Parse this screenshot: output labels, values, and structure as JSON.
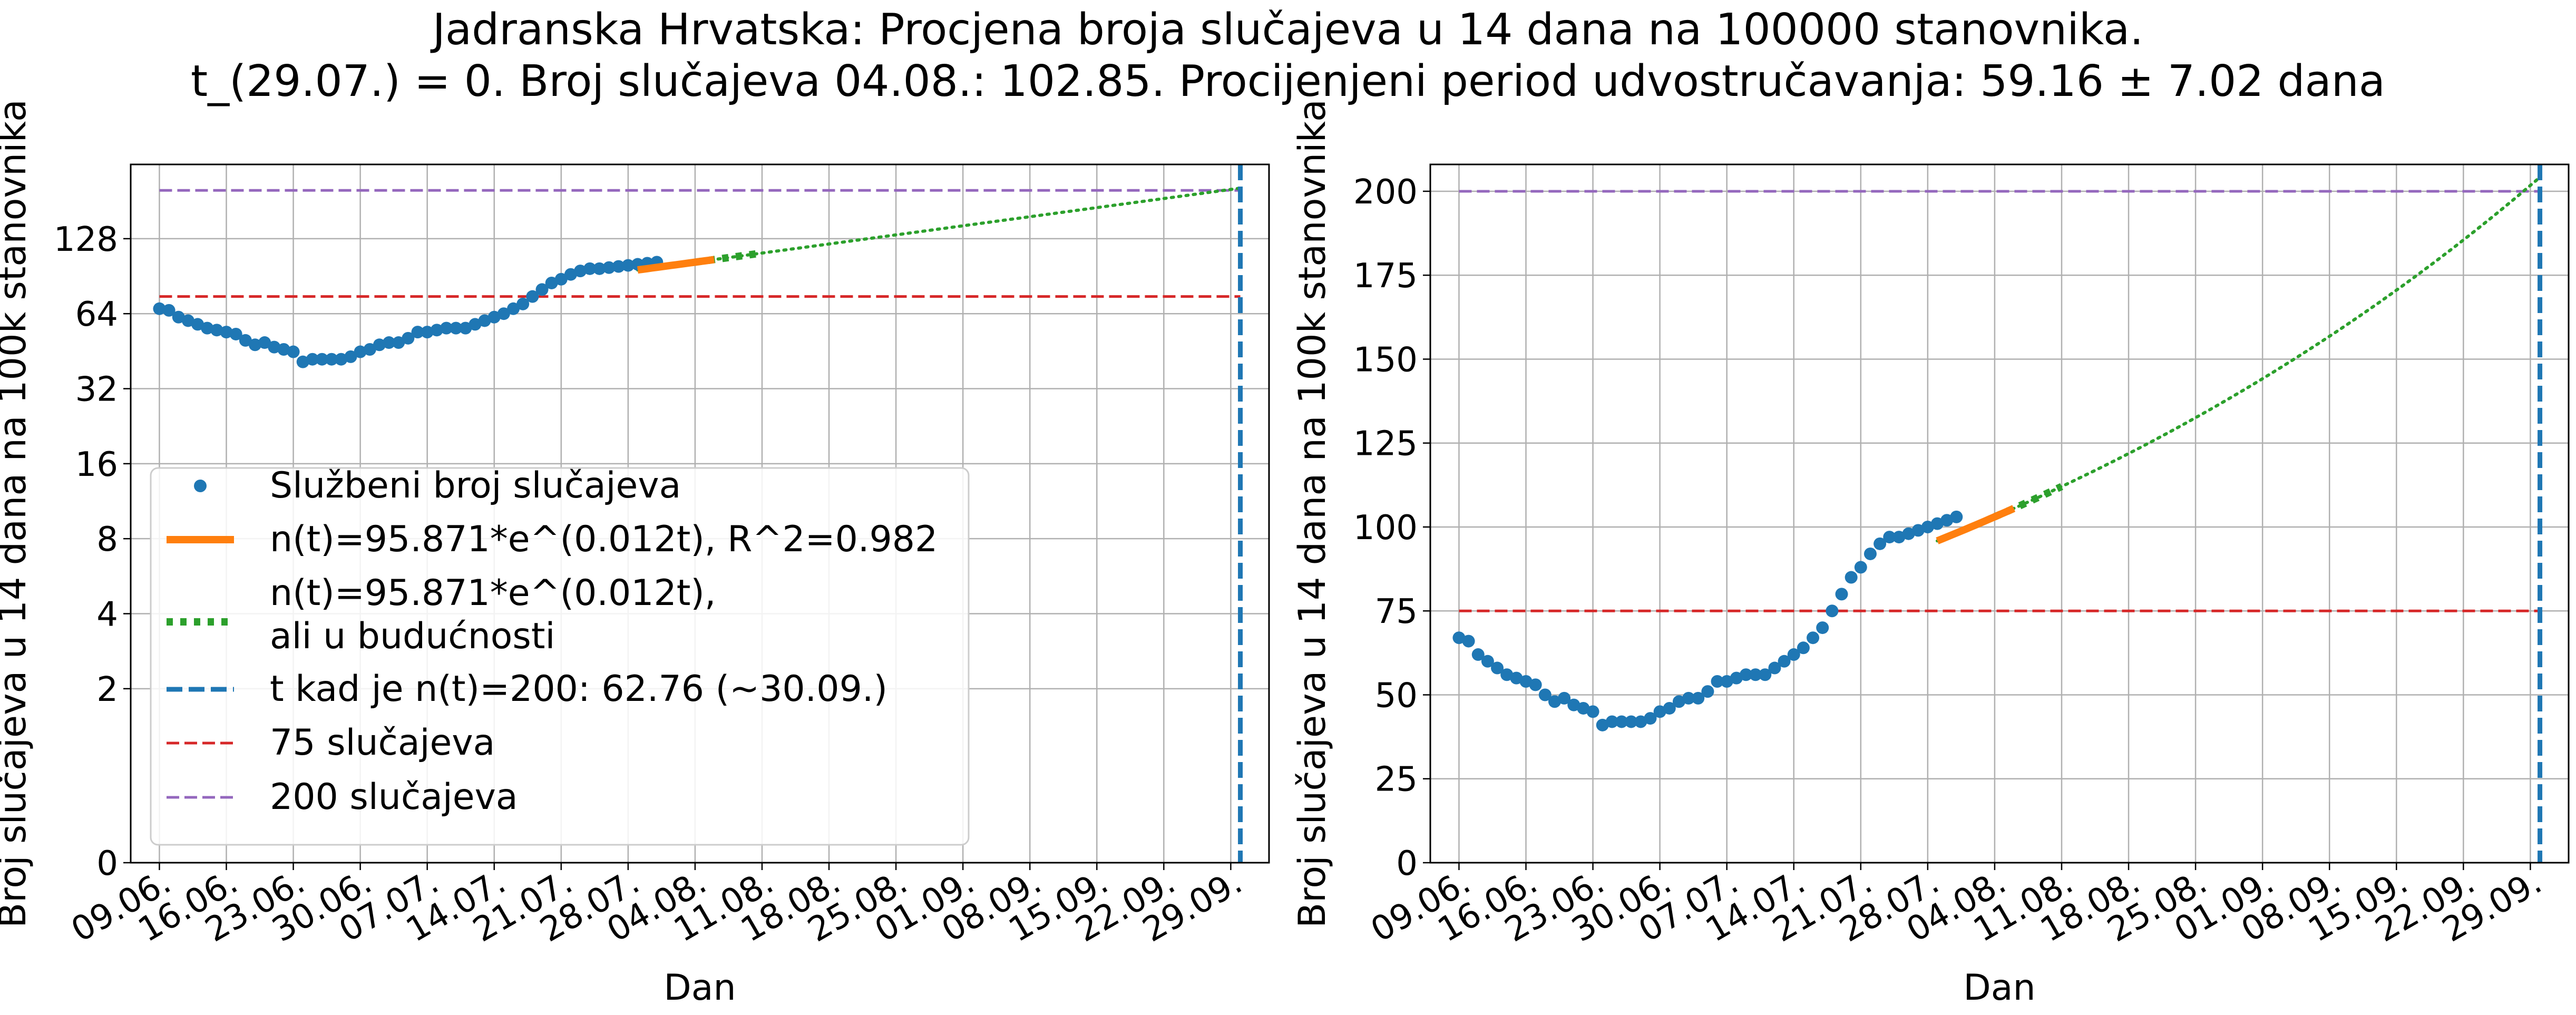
{
  "title_line1": "Jadranska Hrvatska: Procjena broja slučajeva u 14 dana na 100000 stanovnika.",
  "title_line2": "t_(29.07.) = 0. Broj slučajeva 04.08.: 102.85. Procijenjeni period udvostručavanja: 59.16 ± 7.02 dana",
  "colors": {
    "points": "#1f77b4",
    "fit": "#ff7f0e",
    "future": "#2ca02c",
    "t200": "#1f77b4",
    "h75": "#d62728",
    "h200": "#9467bd",
    "grid": "#b0b0b0"
  },
  "chart_data": [
    {
      "type": "scatter",
      "scale": "log2",
      "xlabel": "Dan",
      "ylabel": "Broj slučajeva u 14 dana na 100k stanovnika",
      "x_ticks": [
        "09.06.",
        "16.06.",
        "23.06.",
        "30.06.",
        "07.07.",
        "14.07.",
        "21.07.",
        "28.07.",
        "04.08.",
        "11.08.",
        "18.08.",
        "25.08.",
        "01.09.",
        "08.09.",
        "15.09.",
        "22.09.",
        "29.09."
      ],
      "y_ticks": [
        "0",
        "2",
        "4",
        "8",
        "16",
        "32",
        "64",
        "128"
      ],
      "grid": true,
      "legend_position": "lower-left",
      "legend": [
        {
          "key": "points",
          "label": "Službeni broj slučajeva"
        },
        {
          "key": "fit",
          "label": "n(t)=95.871*e^(0.012t), R^2=0.982"
        },
        {
          "key": "future",
          "label": "n(t)=95.871*e^(0.012t),",
          "label2": "ali u budućnosti"
        },
        {
          "key": "t200",
          "label": "t kad je n(t)=200: 62.76 (~30.09.)"
        },
        {
          "key": "h75",
          "label": "75 slučajeva"
        },
        {
          "key": "h200",
          "label": "200 slučajeva"
        }
      ]
    },
    {
      "type": "scatter",
      "scale": "linear",
      "xlabel": "Dan",
      "ylabel": "Broj slučajeva u 14 dana na 100k stanovnika",
      "x_ticks": [
        "09.06.",
        "16.06.",
        "23.06.",
        "30.06.",
        "07.07.",
        "14.07.",
        "21.07.",
        "28.07.",
        "04.08.",
        "11.08.",
        "18.08.",
        "25.08.",
        "01.09.",
        "08.09.",
        "15.09.",
        "22.09.",
        "29.09."
      ],
      "y_ticks": [
        "0",
        "25",
        "50",
        "75",
        "100",
        "125",
        "150",
        "175",
        "200"
      ],
      "ylim": [
        0,
        208
      ],
      "grid": true
    }
  ],
  "series": {
    "x_start_date": "2020-06-09",
    "official_cases": [
      67,
      66,
      62,
      60,
      58,
      56,
      55,
      54,
      53,
      50,
      48,
      49,
      47,
      46,
      45,
      41,
      42,
      42,
      42,
      42,
      43,
      45,
      46,
      48,
      49,
      49,
      51,
      54,
      54,
      55,
      56,
      56,
      56,
      58,
      60,
      62,
      64,
      67,
      70,
      75,
      80,
      85,
      88,
      92,
      95,
      97,
      97,
      98,
      99,
      100,
      101,
      102,
      103
    ],
    "fit_model": {
      "a": 95.871,
      "b": 0.012,
      "t0_date": "2020-07-29",
      "fit_from_date": "2020-07-29",
      "fit_to_date": "2020-08-04",
      "future_to_date": "2020-09-30"
    },
    "t_200_date": "2020-09-30",
    "horizontal_lines": [
      75,
      200
    ]
  }
}
